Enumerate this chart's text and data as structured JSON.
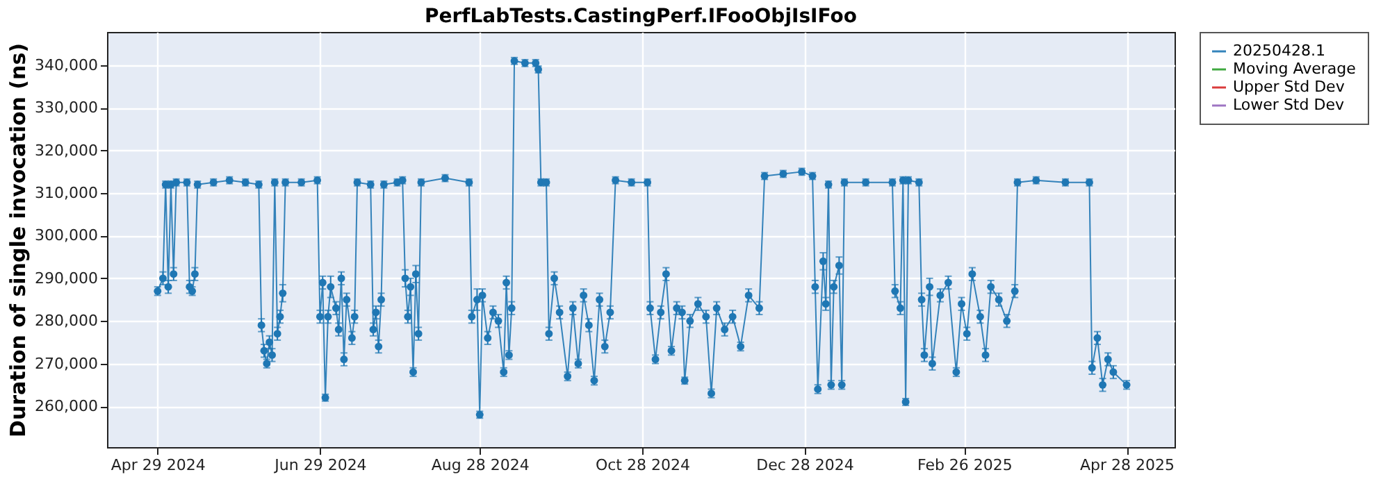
{
  "chart_data": {
    "type": "line",
    "title": "PerfLabTests.CastingPerf.IFooObjIsIFoo",
    "ylabel": "Duration of single invocation (ns)",
    "xlim": [
      "2024-04-10",
      "2025-05-16"
    ],
    "xticks": [
      {
        "value": "2024-04-29",
        "label": "Apr 29 2024"
      },
      {
        "value": "2024-06-29",
        "label": "Jun 29 2024"
      },
      {
        "value": "2024-08-28",
        "label": "Aug 28 2024"
      },
      {
        "value": "2024-10-28",
        "label": "Oct 28 2024"
      },
      {
        "value": "2024-12-28",
        "label": "Dec 28 2024"
      },
      {
        "value": "2025-02-26",
        "label": "Feb 26 2025"
      },
      {
        "value": "2025-04-28",
        "label": "Apr 28 2025"
      }
    ],
    "ylim": [
      250400,
      347800
    ],
    "yticks": [
      {
        "value": 260000,
        "label": "260,000"
      },
      {
        "value": 270000,
        "label": "270,000"
      },
      {
        "value": 280000,
        "label": "280,000"
      },
      {
        "value": 290000,
        "label": "290,000"
      },
      {
        "value": 300000,
        "label": "300,000"
      },
      {
        "value": 310000,
        "label": "310,000"
      },
      {
        "value": 320000,
        "label": "320,000"
      },
      {
        "value": 330000,
        "label": "330,000"
      },
      {
        "value": 340000,
        "label": "340,000"
      }
    ],
    "grid": true,
    "legend": "right",
    "marker": "circle",
    "line_style": "solid",
    "series": [
      {
        "name": "20250428.1",
        "color": "#1f77b4",
        "x": [
          "2024-04-29",
          "2024-05-01",
          "2024-05-02",
          "2024-05-03",
          "2024-05-04",
          "2024-05-05",
          "2024-05-06",
          "2024-05-10",
          "2024-05-11",
          "2024-05-12",
          "2024-05-13",
          "2024-05-14",
          "2024-05-20",
          "2024-05-26",
          "2024-06-01",
          "2024-06-06",
          "2024-06-07",
          "2024-06-08",
          "2024-06-09",
          "2024-06-10",
          "2024-06-11",
          "2024-06-12",
          "2024-06-13",
          "2024-06-14",
          "2024-06-15",
          "2024-06-16",
          "2024-06-22",
          "2024-06-28",
          "2024-06-29",
          "2024-06-30",
          "2024-07-01",
          "2024-07-02",
          "2024-07-03",
          "2024-07-05",
          "2024-07-06",
          "2024-07-07",
          "2024-07-08",
          "2024-07-09",
          "2024-07-11",
          "2024-07-12",
          "2024-07-13",
          "2024-07-18",
          "2024-07-19",
          "2024-07-20",
          "2024-07-21",
          "2024-07-22",
          "2024-07-23",
          "2024-07-28",
          "2024-07-30",
          "2024-07-31",
          "2024-08-01",
          "2024-08-02",
          "2024-08-03",
          "2024-08-04",
          "2024-08-05",
          "2024-08-06",
          "2024-08-15",
          "2024-08-24",
          "2024-08-25",
          "2024-08-27",
          "2024-08-28",
          "2024-08-29",
          "2024-08-31",
          "2024-09-02",
          "2024-09-04",
          "2024-09-06",
          "2024-09-07",
          "2024-09-08",
          "2024-09-09",
          "2024-09-10",
          "2024-09-14",
          "2024-09-18",
          "2024-09-19",
          "2024-09-20",
          "2024-09-22",
          "2024-09-23",
          "2024-09-25",
          "2024-09-27",
          "2024-09-30",
          "2024-10-02",
          "2024-10-04",
          "2024-10-06",
          "2024-10-08",
          "2024-10-10",
          "2024-10-12",
          "2024-10-14",
          "2024-10-16",
          "2024-10-18",
          "2024-10-24",
          "2024-10-30",
          "2024-10-31",
          "2024-11-02",
          "2024-11-04",
          "2024-11-06",
          "2024-11-08",
          "2024-11-10",
          "2024-11-12",
          "2024-11-13",
          "2024-11-15",
          "2024-11-18",
          "2024-11-21",
          "2024-11-23",
          "2024-11-25",
          "2024-11-28",
          "2024-12-01",
          "2024-12-04",
          "2024-12-07",
          "2024-12-11",
          "2024-12-13",
          "2024-12-20",
          "2024-12-27",
          "2024-12-31",
          "2025-01-01",
          "2025-01-02",
          "2025-01-04",
          "2025-01-05",
          "2025-01-06",
          "2025-01-07",
          "2025-01-08",
          "2025-01-10",
          "2025-01-11",
          "2025-01-12",
          "2025-01-20",
          "2025-01-30",
          "2025-01-31",
          "2025-02-02",
          "2025-02-03",
          "2025-02-04",
          "2025-02-05",
          "2025-02-09",
          "2025-02-10",
          "2025-02-11",
          "2025-02-13",
          "2025-02-14",
          "2025-02-17",
          "2025-02-20",
          "2025-02-23",
          "2025-02-25",
          "2025-02-27",
          "2025-03-01",
          "2025-03-04",
          "2025-03-06",
          "2025-03-08",
          "2025-03-11",
          "2025-03-14",
          "2025-03-17",
          "2025-03-18",
          "2025-03-25",
          "2025-04-05",
          "2025-04-14",
          "2025-04-15",
          "2025-04-17",
          "2025-04-19",
          "2025-04-21",
          "2025-04-23",
          "2025-04-28"
        ],
        "values": [
          287000,
          290000,
          312000,
          288000,
          312000,
          291000,
          312500,
          312500,
          288000,
          287000,
          291000,
          312000,
          312500,
          313000,
          312500,
          312000,
          279000,
          273000,
          270000,
          275000,
          272000,
          312500,
          277000,
          281000,
          286500,
          312500,
          312500,
          313000,
          281000,
          289000,
          262000,
          281000,
          288000,
          283000,
          278000,
          290000,
          271000,
          285000,
          276000,
          281000,
          312500,
          312000,
          278000,
          282000,
          274000,
          285000,
          312000,
          312500,
          313000,
          290000,
          281000,
          288000,
          268000,
          291000,
          277000,
          312500,
          313500,
          312500,
          281000,
          285000,
          258000,
          286000,
          276000,
          282000,
          280000,
          268000,
          289000,
          272000,
          283000,
          341000,
          340500,
          340500,
          339000,
          312500,
          312500,
          277000,
          290000,
          282000,
          267000,
          283000,
          270000,
          286000,
          279000,
          266000,
          285000,
          274000,
          282000,
          313000,
          312500,
          312500,
          283000,
          271000,
          282000,
          291000,
          273000,
          283000,
          282000,
          266000,
          280000,
          284000,
          281000,
          263000,
          283000,
          278000,
          281000,
          274000,
          286000,
          283000,
          314000,
          314500,
          315000,
          314000,
          288000,
          264000,
          294000,
          284000,
          312000,
          265000,
          288000,
          293000,
          265000,
          312500,
          312500,
          312500,
          287000,
          283000,
          313000,
          261000,
          313000,
          312500,
          285000,
          272000,
          288000,
          270000,
          286000,
          289000,
          268000,
          284000,
          277000,
          291000,
          281000,
          272000,
          288000,
          285000,
          280000,
          287000,
          312500,
          313000,
          312500,
          312500,
          269000,
          276000,
          265000,
          271000,
          268000,
          265000
        ],
        "errors": [
          1000,
          1500,
          800,
          1500,
          800,
          1500,
          800,
          800,
          1500,
          1000,
          1500,
          800,
          800,
          800,
          800,
          800,
          1500,
          1500,
          1000,
          1500,
          1500,
          800,
          1500,
          1500,
          2000,
          800,
          800,
          800,
          1500,
          1500,
          800,
          1500,
          2500,
          1500,
          1500,
          1500,
          1500,
          1500,
          1500,
          1500,
          800,
          800,
          1500,
          1500,
          1500,
          1500,
          800,
          800,
          800,
          2000,
          1500,
          2000,
          1000,
          2000,
          1500,
          800,
          800,
          800,
          1500,
          2500,
          800,
          1500,
          1500,
          1500,
          1500,
          1000,
          1500,
          1000,
          1500,
          800,
          800,
          800,
          800,
          800,
          800,
          1500,
          1500,
          1500,
          1000,
          1500,
          1000,
          1500,
          1500,
          1000,
          1500,
          1500,
          1500,
          800,
          800,
          800,
          1500,
          1000,
          1500,
          1500,
          1000,
          1500,
          1500,
          800,
          1500,
          1500,
          1500,
          1000,
          1500,
          1500,
          1500,
          1000,
          1500,
          1500,
          800,
          800,
          800,
          800,
          1500,
          1000,
          2000,
          1500,
          800,
          1000,
          1500,
          2000,
          1000,
          800,
          800,
          800,
          1500,
          1500,
          800,
          800,
          800,
          800,
          1500,
          1500,
          2000,
          1500,
          1500,
          1500,
          1000,
          1500,
          1500,
          1500,
          1500,
          1500,
          1500,
          1500,
          1500,
          1500,
          800,
          800,
          800,
          800,
          1500,
          1500,
          1500,
          1500,
          1500,
          1000
        ]
      },
      {
        "name": "Moving Average",
        "color": "#2ca02c"
      },
      {
        "name": "Upper Std Dev",
        "color": "#d62728"
      },
      {
        "name": "Lower Std Dev",
        "color": "#9467bd"
      }
    ]
  }
}
